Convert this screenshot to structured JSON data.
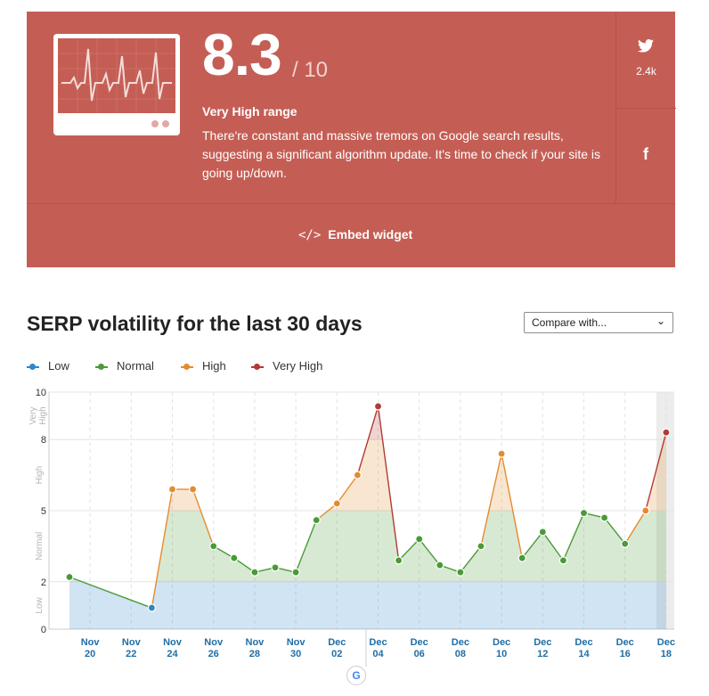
{
  "score": {
    "value": "8.3",
    "max": "/ 10",
    "range": "Very High range",
    "description": "There're constant and massive tremors on Google search results, suggesting a significant algorithm update. It's time to check if your site is going up/down.",
    "twitter_icon": "twitter-icon",
    "twitter_count": "2.4k",
    "facebook_icon": "facebook-icon",
    "facebook_glyph": "f",
    "embed_label": "Embed widget",
    "embed_glyph": "</>",
    "bg_color": "#c45e54"
  },
  "section_title": "SERP volatility for the last 30 days",
  "compare": {
    "selected": "Compare with..."
  },
  "legend": [
    {
      "label": "Low",
      "color": "#2e86c9"
    },
    {
      "label": "Normal",
      "color": "#4a9a38"
    },
    {
      "label": "High",
      "color": "#e58b2e"
    },
    {
      "label": "Very High",
      "color": "#b23a36"
    }
  ],
  "chart_data": {
    "type": "area",
    "x": [
      "Nov 19",
      "Nov 20",
      "Nov 21",
      "Nov 22",
      "Nov 23",
      "Nov 24",
      "Nov 25",
      "Nov 26",
      "Nov 27",
      "Nov 28",
      "Nov 29",
      "Nov 30",
      "Dec 01",
      "Dec 02",
      "Dec 03",
      "Dec 04",
      "Dec 05",
      "Dec 06",
      "Dec 07",
      "Dec 08",
      "Dec 09",
      "Dec 10",
      "Dec 11",
      "Dec 12",
      "Dec 13",
      "Dec 14",
      "Dec 15",
      "Dec 16",
      "Dec 17",
      "Dec 18"
    ],
    "values": [
      2.2,
      null,
      null,
      null,
      0.9,
      5.9,
      5.9,
      3.5,
      3.0,
      2.4,
      2.6,
      2.4,
      4.6,
      5.3,
      6.5,
      9.4,
      2.9,
      3.8,
      2.7,
      2.4,
      3.5,
      7.4,
      3.0,
      4.1,
      2.9,
      4.9,
      4.7,
      3.6,
      5.0,
      8.3
    ],
    "level_colors": [
      "#2e86c9",
      "#4a9a38",
      "#e58b2e",
      "#b23a36"
    ],
    "x_tick_labels": [
      [
        "Nov",
        "20"
      ],
      [
        "Nov",
        "22"
      ],
      [
        "Nov",
        "24"
      ],
      [
        "Nov",
        "26"
      ],
      [
        "Nov",
        "28"
      ],
      [
        "Nov",
        "30"
      ],
      [
        "Dec",
        "02"
      ],
      [
        "Dec",
        "04"
      ],
      [
        "Dec",
        "06"
      ],
      [
        "Dec",
        "08"
      ],
      [
        "Dec",
        "10"
      ],
      [
        "Dec",
        "12"
      ],
      [
        "Dec",
        "14"
      ],
      [
        "Dec",
        "16"
      ],
      [
        "Dec",
        "18"
      ]
    ],
    "y_ticks": [
      "0",
      "2",
      "5",
      "8",
      "10"
    ],
    "y_range_labels": [
      "Low",
      "Normal",
      "High",
      "Very High"
    ],
    "ylim": [
      0,
      10
    ],
    "bands": [
      {
        "name": "Low",
        "from": 0,
        "to": 2,
        "color": "#2e86c9"
      },
      {
        "name": "Normal",
        "from": 2,
        "to": 5,
        "color": "#4a9a38"
      },
      {
        "name": "High",
        "from": 5,
        "to": 8,
        "color": "#e58b2e"
      },
      {
        "name": "Very High",
        "from": 8,
        "to": 10,
        "color": "#b23a36"
      }
    ],
    "highlight_last_day": true,
    "google_update_marker": "Dec 03"
  },
  "google_marker_glyph": "G"
}
